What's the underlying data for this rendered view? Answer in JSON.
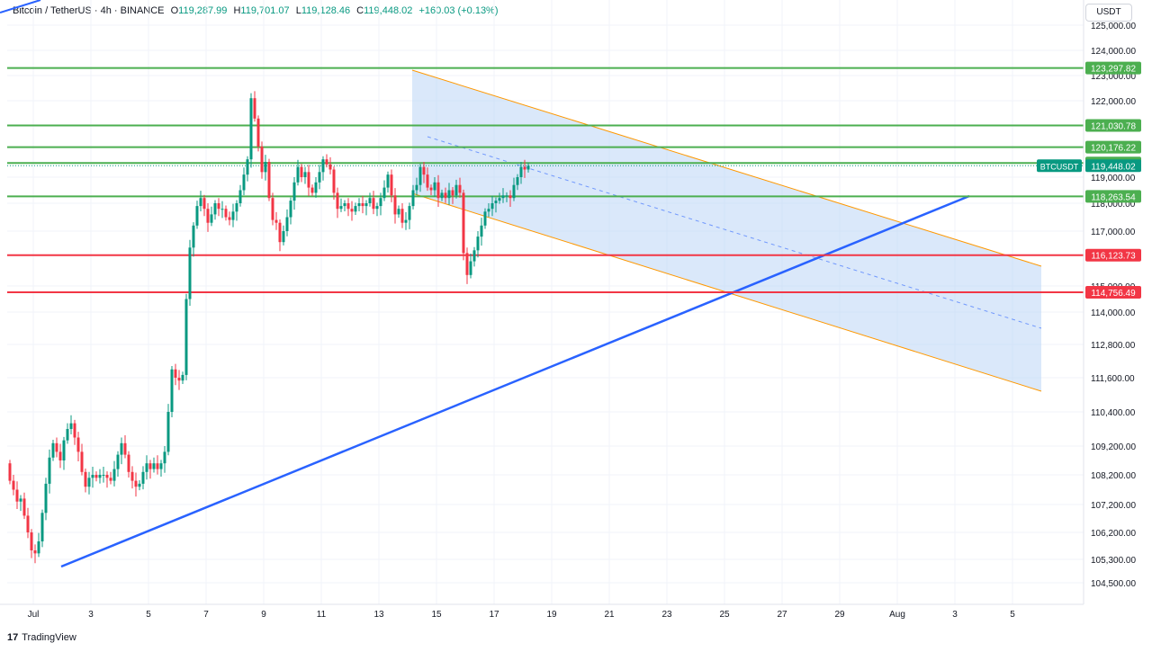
{
  "header": {
    "symbol": "Bitcoin / TetherUS · 4h · BINANCE",
    "o_label": "O",
    "o_value": "119,287.99",
    "h_label": "H",
    "h_value": "119,701.07",
    "l_label": "L",
    "l_value": "119,128.46",
    "c_label": "C",
    "c_value": "119,448.02",
    "change": "+160.03 (+0.13%)"
  },
  "currency_button": "USDT",
  "brand": {
    "name": "TradingView",
    "logo": "17"
  },
  "colors": {
    "up": "#089981",
    "down": "#f23645",
    "support": "#4caf50",
    "resistance": "#f23645",
    "trendline": "#2962ff",
    "channel_edge": "#ff9800",
    "channel_fill": "#bbd6f5",
    "grid": "#f0f3fa"
  },
  "chart_data": {
    "type": "candlestick",
    "x_tick_labels": [
      "Jul",
      "3",
      "5",
      "7",
      "9",
      "11",
      "13",
      "15",
      "17",
      "19",
      "21",
      "23",
      "25",
      "27",
      "29",
      "Aug",
      "3",
      "5"
    ],
    "y_tick_labels": [
      "125,000.00",
      "124,000.00",
      "123,000.00",
      "122,000.00",
      "119,000.00",
      "118,000.00",
      "117,000.00",
      "115,000.00",
      "114,000.00",
      "112,800.00",
      "111,600.00",
      "110,400.00",
      "109,200.00",
      "108,200.00",
      "107,200.00",
      "106,200.00",
      "105,300.00",
      "104,500.00"
    ],
    "price_levels": [
      {
        "label": "123,297.82",
        "kind": "support",
        "color": "#4caf50"
      },
      {
        "label": "121,030.78",
        "kind": "support",
        "color": "#4caf50"
      },
      {
        "label": "120,176.22",
        "kind": "support",
        "color": "#4caf50"
      },
      {
        "label": "119,554.51",
        "kind": "support",
        "color": "#4caf50"
      },
      {
        "label": "118,263.54",
        "kind": "support",
        "color": "#4caf50"
      },
      {
        "label": "116,123.73",
        "kind": "resistance",
        "color": "#f23645"
      },
      {
        "label": "114,756.49",
        "kind": "resistance",
        "color": "#f23645"
      }
    ],
    "current_price": {
      "symbol": "BTCUSDT",
      "value": "119,448.02"
    },
    "candles_close": [
      108000,
      107700,
      107300,
      107400,
      106800,
      106200,
      105600,
      105500,
      105900,
      106900,
      107900,
      108800,
      109300,
      109000,
      108700,
      109400,
      109800,
      110000,
      109500,
      109000,
      108300,
      107800,
      108100,
      108200,
      108100,
      108200,
      108200,
      108100,
      108000,
      108400,
      108900,
      109300,
      108900,
      108300,
      108000,
      107800,
      107900,
      108300,
      108600,
      108400,
      108600,
      108400,
      108600,
      109000,
      110400,
      111900,
      111600,
      111500,
      111700,
      114500,
      116400,
      117200,
      117900,
      118200,
      117800,
      117300,
      117600,
      118000,
      117800,
      117800,
      117500,
      117400,
      117700,
      118000,
      118500,
      119100,
      119700,
      122100,
      121300,
      120200,
      119200,
      119600,
      118200,
      117400,
      117300,
      116600,
      117000,
      117500,
      118100,
      118800,
      119400,
      119000,
      119200,
      118600,
      118400,
      118800,
      119200,
      119700,
      119500,
      119300,
      118400,
      117800,
      117900,
      118000,
      117800,
      117700,
      117900,
      118000,
      117900,
      118000,
      118200,
      117800,
      117900,
      118200,
      118600,
      119100,
      118300,
      117600,
      117800,
      117300,
      117400,
      117900,
      118500,
      118700,
      119400,
      119100,
      118600,
      118500,
      118800,
      118200,
      118400,
      118200,
      118500,
      118300,
      118700,
      118400,
      116200,
      115400,
      115900,
      116300,
      116800,
      117200,
      117700,
      117800,
      118000,
      118100,
      118200,
      118300,
      118300,
      118200,
      118700,
      119000,
      119400,
      119300,
      119448
    ]
  }
}
